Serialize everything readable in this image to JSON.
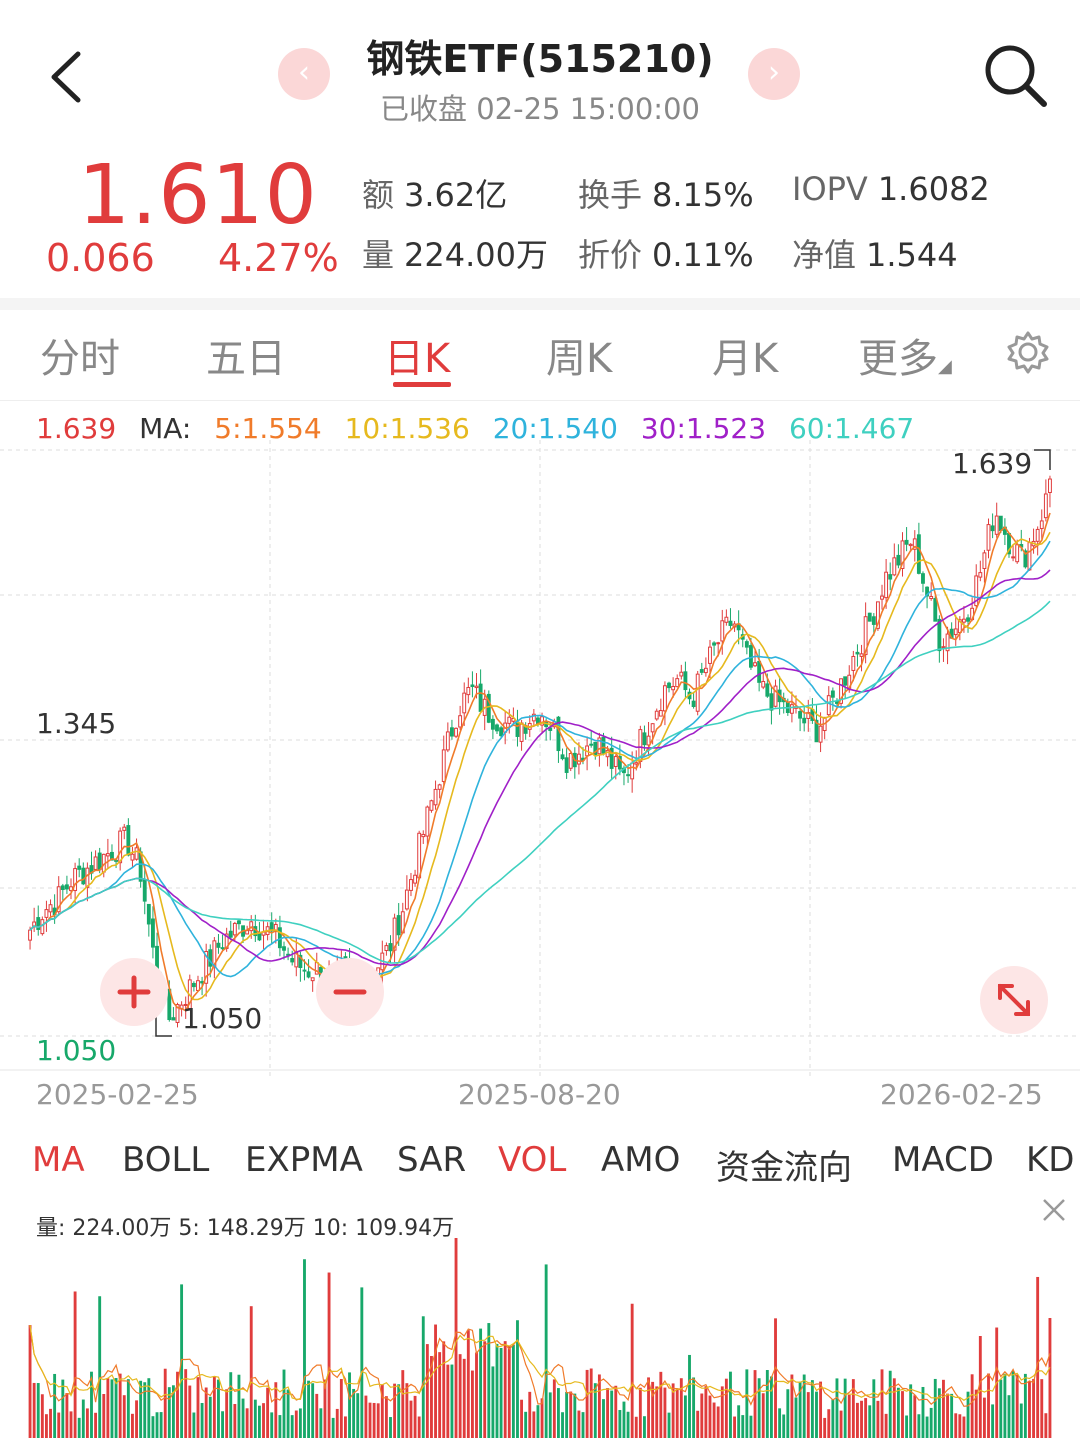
{
  "header": {
    "title": "钢铁ETF(515210)",
    "status": "已收盘 02-25 15:00:00",
    "prev_glyph": "‹",
    "next_glyph": "›"
  },
  "quote": {
    "price": "1.610",
    "change": "0.066",
    "change_pct": "4.27%",
    "stats": [
      {
        "label": "额",
        "value": "3.62亿"
      },
      {
        "label": "换手",
        "value": "8.15%"
      },
      {
        "label": "IOPV",
        "value": "1.6082"
      },
      {
        "label": "量",
        "value": "224.00万"
      },
      {
        "label": "折价",
        "value": "0.11%"
      },
      {
        "label": "净值",
        "value": "1.544"
      }
    ]
  },
  "period_tabs": [
    {
      "label": "分时",
      "active": false
    },
    {
      "label": "五日",
      "active": false
    },
    {
      "label": "日K",
      "active": true
    },
    {
      "label": "周K",
      "active": false
    },
    {
      "label": "月K",
      "active": false
    },
    {
      "label": "更多",
      "active": false
    }
  ],
  "ma_legend": {
    "price": "1.639",
    "label": "MA:",
    "items": [
      {
        "text": "5:1.554",
        "color": "#f07b2a"
      },
      {
        "text": "10:1.536",
        "color": "#e6b91e"
      },
      {
        "text": "20:1.540",
        "color": "#2fb3dc"
      },
      {
        "text": "30:1.523",
        "color": "#a020c8"
      },
      {
        "text": "60:1.467",
        "color": "#3fd0c0"
      }
    ]
  },
  "chart_data": {
    "type": "candlestick",
    "price_labels": {
      "high_mark": "1.639",
      "mid": "1.345",
      "low_mark": "1.050",
      "axis_low": "1.050"
    },
    "x_labels": [
      "2025-02-25",
      "2025-08-20",
      "2026-02-25"
    ],
    "ylim": [
      1.05,
      1.639
    ],
    "close_series": [
      1.16,
      1.18,
      1.19,
      1.21,
      1.22,
      1.23,
      1.24,
      1.25,
      1.22,
      1.13,
      1.07,
      1.09,
      1.11,
      1.13,
      1.15,
      1.16,
      1.17,
      1.16,
      1.15,
      1.13,
      1.12,
      1.12,
      1.11,
      1.12,
      1.1,
      1.12,
      1.14,
      1.18,
      1.23,
      1.28,
      1.33,
      1.38,
      1.4,
      1.38,
      1.37,
      1.36,
      1.37,
      1.38,
      1.36,
      1.33,
      1.34,
      1.35,
      1.33,
      1.31,
      1.34,
      1.37,
      1.4,
      1.41,
      1.39,
      1.42,
      1.45,
      1.47,
      1.43,
      1.4,
      1.39,
      1.38,
      1.37,
      1.36,
      1.38,
      1.41,
      1.44,
      1.47,
      1.51,
      1.53,
      1.55,
      1.5,
      1.45,
      1.46,
      1.48,
      1.52,
      1.58,
      1.55,
      1.53,
      1.56,
      1.6
    ],
    "ma_colors": {
      "ma5": "#f07b2a",
      "ma10": "#e6b91e",
      "ma20": "#2fb3dc",
      "ma30": "#a020c8",
      "ma60": "#3fd0c0"
    },
    "up_color": "#e03c3c",
    "down_color": "#17a86a"
  },
  "indicator_tabs": [
    {
      "label": "MA",
      "active": true
    },
    {
      "label": "BOLL",
      "active": false
    },
    {
      "label": "EXPMA",
      "active": false
    },
    {
      "label": "SAR",
      "active": false
    },
    {
      "label": "VOL",
      "active": true
    },
    {
      "label": "AMO",
      "active": false
    },
    {
      "label": "资金流向",
      "active": false
    },
    {
      "label": "MACD",
      "active": false
    },
    {
      "label": "KD",
      "active": false
    }
  ],
  "volume": {
    "summary": "量: 224.00万  5: 148.29万  10: 109.94万"
  }
}
